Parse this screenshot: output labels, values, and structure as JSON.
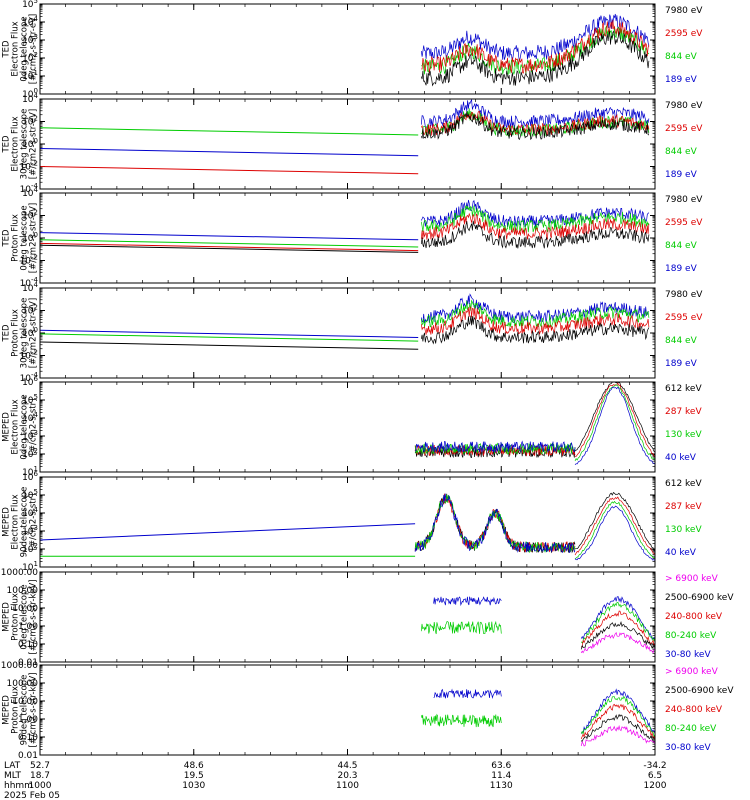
{
  "chart_data": [
    {
      "type": "line",
      "ylabel": [
        "TED",
        "Electron Flux",
        "0deg telescope",
        "[#/cm2-s-str-eV]"
      ],
      "yscale": "log",
      "ylim": [
        1,
        100000
      ],
      "yticks": [
        "10^0",
        "10^1",
        "10^2",
        "10^3",
        "10^4",
        "10^5"
      ],
      "legend_placement": "right",
      "series": [
        {
          "name": "7980 eV",
          "color": "#000000"
        },
        {
          "name": "2595 eV",
          "color": "#dd0000"
        },
        {
          "name": "844 eV",
          "color": "#00cc00"
        },
        {
          "name": "189 eV",
          "color": "#0000cc"
        }
      ]
    },
    {
      "type": "line",
      "ylabel": [
        "TED",
        "Electron Flux",
        "30deg telescope",
        "[#/cm2-s-str-eV]"
      ],
      "yscale": "log",
      "ylim": [
        0.0001,
        100000
      ],
      "yticks": [
        "10^-4",
        "10^-2",
        "10^0",
        "10^2",
        "10^4"
      ],
      "legend_placement": "right",
      "series": [
        {
          "name": "7980 eV",
          "color": "#000000"
        },
        {
          "name": "2595 eV",
          "color": "#dd0000"
        },
        {
          "name": "844 eV",
          "color": "#00cc00"
        },
        {
          "name": "189 eV",
          "color": "#0000cc"
        }
      ]
    },
    {
      "type": "line",
      "ylabel": [
        "TED",
        "Proton Flux",
        "0deg telescope",
        "[#/cm2-s-str-eV]"
      ],
      "yscale": "log",
      "ylim": [
        0.0001,
        100000
      ],
      "yticks": [
        "10^-4",
        "10^-2",
        "10^0",
        "10^2",
        "10^4"
      ],
      "legend_placement": "right",
      "series": [
        {
          "name": "7980 eV",
          "color": "#000000"
        },
        {
          "name": "2595 eV",
          "color": "#dd0000"
        },
        {
          "name": "844 eV",
          "color": "#00cc00"
        },
        {
          "name": "189 eV",
          "color": "#0000cc"
        }
      ]
    },
    {
      "type": "line",
      "ylabel": [
        "TED",
        "Proton Flux",
        "30deg telescope",
        "[#/cm2-s-str-eV]"
      ],
      "yscale": "log",
      "ylim": [
        0.0001,
        100000
      ],
      "yticks": [
        "10^-4",
        "10^-2",
        "10^0",
        "10^2",
        "10^4"
      ],
      "legend_placement": "right",
      "series": [
        {
          "name": "7980 eV",
          "color": "#000000"
        },
        {
          "name": "2595 eV",
          "color": "#dd0000"
        },
        {
          "name": "844 eV",
          "color": "#00cc00"
        },
        {
          "name": "189 eV",
          "color": "#0000cc"
        }
      ]
    },
    {
      "type": "line",
      "ylabel": [
        "MEPED",
        "Electron Flux",
        "0deg telescope",
        "[#/cm2-s-str]"
      ],
      "yscale": "log",
      "ylim": [
        10,
        1000000
      ],
      "yticks": [
        "10^1",
        "10^2",
        "10^3",
        "10^4",
        "10^5",
        "10^6"
      ],
      "legend_placement": "right",
      "series": [
        {
          "name": "612 keV",
          "color": "#000000"
        },
        {
          "name": "287 keV",
          "color": "#dd0000"
        },
        {
          "name": "130 keV",
          "color": "#00cc00"
        },
        {
          "name": "40 keV",
          "color": "#0000cc"
        }
      ]
    },
    {
      "type": "line",
      "ylabel": [
        "MEPED",
        "Electron Flux",
        "90deg telescope",
        "[#/cm2-s-str]"
      ],
      "yscale": "log",
      "ylim": [
        10,
        1000000
      ],
      "yticks": [
        "10^1",
        "10^2",
        "10^3",
        "10^4",
        "10^5",
        "10^6"
      ],
      "legend_placement": "right",
      "series": [
        {
          "name": "612 keV",
          "color": "#000000"
        },
        {
          "name": "287 keV",
          "color": "#dd0000"
        },
        {
          "name": "130 keV",
          "color": "#00cc00"
        },
        {
          "name": "40 keV",
          "color": "#0000cc"
        }
      ]
    },
    {
      "type": "line",
      "ylabel": [
        "MEPED",
        "Proton Flux",
        "0deg telescope",
        "[#/cm2-s-str-keV]"
      ],
      "yscale": "log",
      "ylim": [
        0.01,
        1000
      ],
      "yticks": [
        "0.01",
        "0.10",
        "1.00",
        "10.00",
        "100.00",
        "1000.00"
      ],
      "legend_placement": "right",
      "series": [
        {
          "name": "> 6900 keV",
          "color": "#ee00ee"
        },
        {
          "name": "2500-6900 keV",
          "color": "#000000"
        },
        {
          "name": "240-800 keV",
          "color": "#dd0000"
        },
        {
          "name": "80-240 keV",
          "color": "#00cc00"
        },
        {
          "name": "30-80 keV",
          "color": "#0000cc"
        }
      ]
    },
    {
      "type": "line",
      "ylabel": [
        "MEPED",
        "Proton Flux",
        "90deg telescope",
        "[#/cm2-s-str-keV]"
      ],
      "yscale": "log",
      "ylim": [
        0.01,
        1000
      ],
      "yticks": [
        "0.01",
        "0.10",
        "1.00",
        "10.00",
        "100.00",
        "1000.00"
      ],
      "legend_placement": "right",
      "series": [
        {
          "name": "> 6900 keV",
          "color": "#ee00ee"
        },
        {
          "name": "2500-6900 keV",
          "color": "#000000"
        },
        {
          "name": "240-800 keV",
          "color": "#dd0000"
        },
        {
          "name": "80-240 keV",
          "color": "#00cc00"
        },
        {
          "name": "30-80 keV",
          "color": "#0000cc"
        }
      ]
    }
  ],
  "x_axis": {
    "rows": [
      {
        "label": "LAT",
        "values": [
          "52.7",
          "48.6",
          "44.5",
          "63.6",
          "-34.2"
        ]
      },
      {
        "label": "MLT",
        "values": [
          "18.7",
          "19.5",
          "20.3",
          "11.4",
          "6.5"
        ]
      },
      {
        "label": "hhmm",
        "values": [
          "1000",
          "1030",
          "1100",
          "1130",
          "1200"
        ]
      }
    ],
    "date": "2025 Feb 05"
  }
}
